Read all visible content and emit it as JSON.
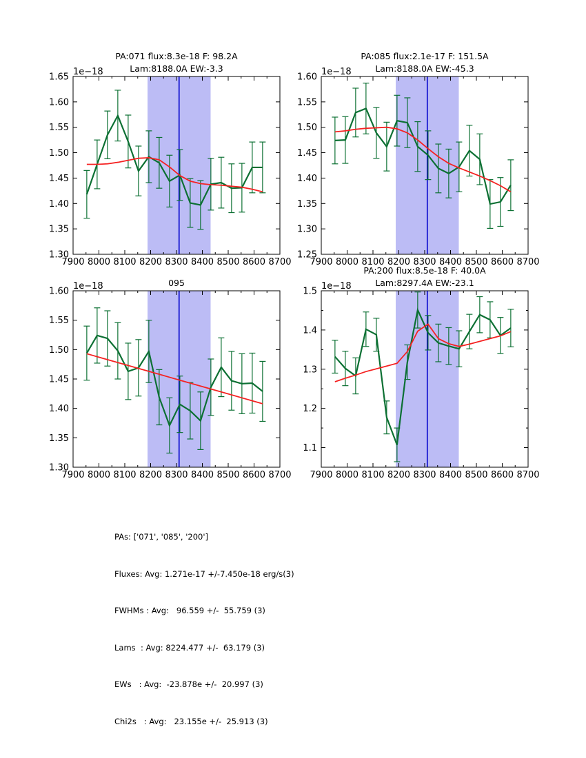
{
  "stats": {
    "lines": [
      "PAs: ['071', '085', '200']",
      "Fluxes: Avg: 1.271e-17 +/-7.450e-18 erg/s(3)",
      "FWHMs : Avg:   96.559 +/-  55.759 (3)",
      "Lams  : Avg: 8224.477 +/-  63.179 (3)",
      "EWs   : Avg:  -23.878e +/-  20.997 (3)",
      "Chi2s   : Avg:   23.155e +/-  25.913 (3)"
    ]
  },
  "colors": {
    "spectrum_green": "#0c7033",
    "fit_red": "#f52222",
    "band_lavender": "#bcbcf5",
    "vline_blue": "#0000cc",
    "axes_black": "#000000"
  },
  "chart_data": [
    {
      "type": "line",
      "title_lines": [
        "PA:071 flux:8.3e-18 F: 98.2A",
        "Lam:8188.0A EW:-3.3"
      ],
      "offset_text": "1e−18",
      "xlim": [
        7900,
        8700
      ],
      "ylim": [
        1.3,
        1.65
      ],
      "xticks": [
        7900,
        8000,
        8100,
        8200,
        8300,
        8400,
        8500,
        8600,
        8700
      ],
      "x_minor_step": 50,
      "yticks": [
        1.3,
        1.35,
        1.4,
        1.45,
        1.5,
        1.55,
        1.6,
        1.65
      ],
      "ytick_labels": [
        "1.30",
        "1.35",
        "1.40",
        "1.45",
        "1.50",
        "1.55",
        "1.60",
        "1.65"
      ],
      "band": {
        "x0": 8188,
        "x1": 8432
      },
      "vline": {
        "x": 8310
      },
      "x": [
        7953,
        7993,
        8033,
        8073,
        8113,
        8153,
        8193,
        8233,
        8273,
        8313,
        8353,
        8393,
        8433,
        8473,
        8513,
        8553,
        8593,
        8633
      ],
      "series": [
        {
          "name": "spectrum",
          "values": [
            1.418,
            1.477,
            1.535,
            1.573,
            1.522,
            1.464,
            1.492,
            1.48,
            1.444,
            1.456,
            1.401,
            1.397,
            1.438,
            1.441,
            1.43,
            1.431,
            1.471,
            1.471
          ],
          "errors": [
            0.047,
            0.048,
            0.047,
            0.05,
            0.052,
            0.049,
            0.051,
            0.05,
            0.051,
            0.05,
            0.048,
            0.048,
            0.051,
            0.05,
            0.048,
            0.048,
            0.05,
            0.05
          ]
        },
        {
          "name": "continuum-fit",
          "values": [
            1.477,
            1.477,
            1.478,
            1.481,
            1.485,
            1.489,
            1.49,
            1.486,
            1.472,
            1.455,
            1.444,
            1.439,
            1.437,
            1.436,
            1.434,
            1.432,
            1.428,
            1.423
          ]
        }
      ]
    },
    {
      "type": "line",
      "title_lines": [
        "PA:085 flux:2.1e-17 F: 151.5A",
        "Lam:8188.0A EW:-45.3"
      ],
      "offset_text": "1e−18",
      "xlim": [
        7900,
        8700
      ],
      "ylim": [
        1.25,
        1.6
      ],
      "xticks": [
        7900,
        8000,
        8100,
        8200,
        8300,
        8400,
        8500,
        8600,
        8700
      ],
      "x_minor_step": 50,
      "yticks": [
        1.25,
        1.3,
        1.35,
        1.4,
        1.45,
        1.5,
        1.55,
        1.6
      ],
      "ytick_labels": [
        "1.25",
        "1.30",
        "1.35",
        "1.40",
        "1.45",
        "1.50",
        "1.55",
        "1.60"
      ],
      "band": {
        "x0": 8188,
        "x1": 8432
      },
      "vline": {
        "x": 8310
      },
      "x": [
        7953,
        7993,
        8033,
        8073,
        8113,
        8153,
        8193,
        8233,
        8273,
        8313,
        8353,
        8393,
        8433,
        8473,
        8513,
        8553,
        8593,
        8633
      ],
      "series": [
        {
          "name": "spectrum",
          "values": [
            1.474,
            1.475,
            1.529,
            1.537,
            1.489,
            1.462,
            1.513,
            1.509,
            1.462,
            1.445,
            1.419,
            1.409,
            1.422,
            1.454,
            1.437,
            1.349,
            1.353,
            1.386
          ],
          "errors": [
            0.046,
            0.046,
            0.048,
            0.05,
            0.05,
            0.048,
            0.05,
            0.049,
            0.049,
            0.048,
            0.048,
            0.048,
            0.049,
            0.05,
            0.05,
            0.048,
            0.048,
            0.05
          ]
        },
        {
          "name": "continuum-fit",
          "values": [
            1.491,
            1.493,
            1.496,
            1.498,
            1.499,
            1.5,
            1.497,
            1.489,
            1.475,
            1.458,
            1.442,
            1.429,
            1.42,
            1.412,
            1.404,
            1.395,
            1.385,
            1.373
          ]
        }
      ]
    },
    {
      "type": "line",
      "title_lines": [
        "095"
      ],
      "offset_text": "1e−18",
      "xlim": [
        7900,
        8700
      ],
      "ylim": [
        1.3,
        1.6
      ],
      "xticks": [
        7900,
        8000,
        8100,
        8200,
        8300,
        8400,
        8500,
        8600,
        8700
      ],
      "x_minor_step": 50,
      "yticks": [
        1.3,
        1.35,
        1.4,
        1.45,
        1.5,
        1.55,
        1.6
      ],
      "ytick_labels": [
        "1.30",
        "1.35",
        "1.40",
        "1.45",
        "1.50",
        "1.55",
        "1.60"
      ],
      "band": {
        "x0": 8188,
        "x1": 8432
      },
      "vline": {
        "x": 8310
      },
      "x": [
        7953,
        7993,
        8033,
        8073,
        8113,
        8153,
        8193,
        8233,
        8273,
        8313,
        8353,
        8393,
        8433,
        8473,
        8513,
        8553,
        8593,
        8633
      ],
      "series": [
        {
          "name": "spectrum",
          "values": [
            1.494,
            1.524,
            1.519,
            1.498,
            1.463,
            1.469,
            1.497,
            1.419,
            1.371,
            1.407,
            1.396,
            1.379,
            1.436,
            1.47,
            1.447,
            1.442,
            1.443,
            1.429
          ],
          "errors": [
            0.046,
            0.047,
            0.047,
            0.048,
            0.048,
            0.048,
            0.053,
            0.047,
            0.047,
            0.048,
            0.048,
            0.049,
            0.048,
            0.05,
            0.05,
            0.051,
            0.051,
            0.051
          ]
        },
        {
          "name": "continuum-fit",
          "values": [
            1.493,
            1.488,
            1.483,
            1.478,
            1.473,
            1.468,
            1.463,
            1.458,
            1.453,
            1.448,
            1.443,
            1.438,
            1.433,
            1.428,
            1.423,
            1.418,
            1.413,
            1.408
          ]
        }
      ]
    },
    {
      "type": "line",
      "title_lines": [
        "PA:200 flux:8.5e-18 F: 40.0A",
        "Lam:8297.4A EW:-23.1"
      ],
      "offset_text": "1e−18",
      "xlim": [
        7900,
        8700
      ],
      "ylim": [
        1.05,
        1.5
      ],
      "xticks": [
        7900,
        8000,
        8100,
        8200,
        8300,
        8400,
        8500,
        8600,
        8700
      ],
      "x_minor_step": 50,
      "yticks": [
        1.1,
        1.2,
        1.3,
        1.4,
        1.5
      ],
      "ytick_labels": [
        "1.1",
        "1.2",
        "1.3",
        "1.4",
        "1.5"
      ],
      "y_minor_step": 0.05,
      "band": {
        "x0": 8188,
        "x1": 8432
      },
      "vline": {
        "x": 8310
      },
      "x": [
        7953,
        7993,
        8033,
        8073,
        8113,
        8153,
        8193,
        8233,
        8273,
        8313,
        8353,
        8393,
        8433,
        8473,
        8513,
        8553,
        8593,
        8633
      ],
      "series": [
        {
          "name": "spectrum",
          "values": [
            1.332,
            1.302,
            1.283,
            1.402,
            1.388,
            1.177,
            1.107,
            1.318,
            1.451,
            1.393,
            1.367,
            1.359,
            1.352,
            1.396,
            1.439,
            1.426,
            1.386,
            1.405
          ],
          "errors": [
            0.042,
            0.044,
            0.046,
            0.044,
            0.042,
            0.042,
            0.043,
            0.044,
            0.046,
            0.044,
            0.048,
            0.047,
            0.046,
            0.044,
            0.046,
            0.046,
            0.046,
            0.048
          ]
        },
        {
          "name": "continuum-fit",
          "values": [
            1.268,
            1.277,
            1.285,
            1.294,
            1.301,
            1.308,
            1.315,
            1.345,
            1.397,
            1.415,
            1.378,
            1.365,
            1.358,
            1.364,
            1.371,
            1.378,
            1.385,
            1.396
          ]
        }
      ]
    }
  ]
}
